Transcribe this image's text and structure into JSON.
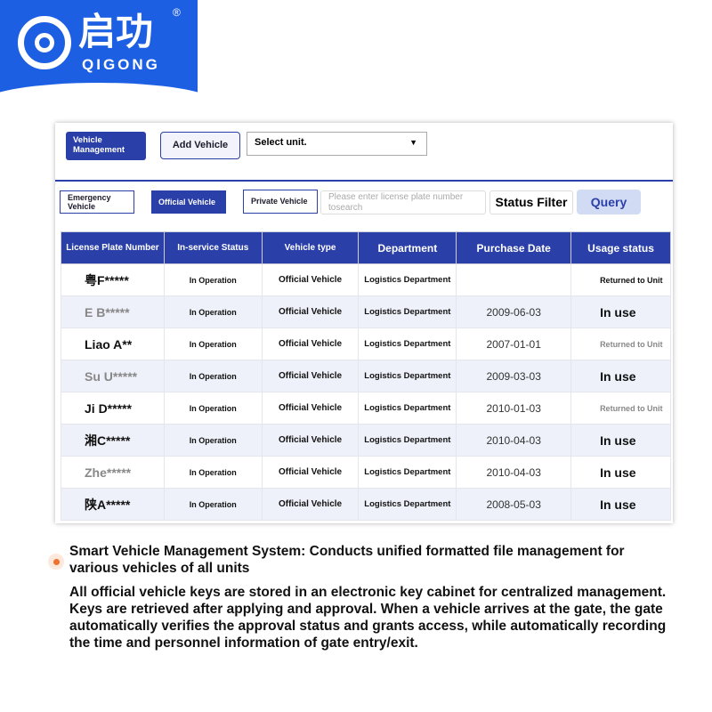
{
  "logo": {
    "chinese": "启功",
    "english": "QIGONG",
    "registered": "®"
  },
  "toolbar": {
    "vehicle_management": "Vehicle Management",
    "add_vehicle": "Add Vehicle",
    "unit_select": "Select unit.",
    "dropdown_arrow": "▼"
  },
  "filters": {
    "emergency": "Emergency Vehicle",
    "official": "Official Vehicle",
    "private": "Private Vehicle",
    "search_placeholder": "Please enter license plate number tosearch",
    "status_filter": "Status Filter",
    "query": "Query"
  },
  "colors": {
    "brand": "#1d5fe2",
    "header": "#2a3fa8",
    "accent": "#f07030"
  },
  "table": {
    "headers": [
      "License Plate Number",
      "In-service Status",
      "Vehicle type",
      "Department",
      "Purchase Date",
      "Usage status"
    ],
    "rows": [
      [
        "粤F*****",
        "In Operation",
        "Official Vehicle",
        "Logistics Department",
        "",
        "Returned to Unit"
      ],
      [
        "E B*****",
        "In Operation",
        "Official Vehicle",
        "Logistics Department",
        "2009-06-03",
        "In use"
      ],
      [
        "Liao A**",
        "In Operation",
        "Official Vehicle",
        "Logistics Department",
        "2007-01-01",
        "Returned to Unit"
      ],
      [
        "Su U*****",
        "In Operation",
        "Official Vehicle",
        "Logistics Department",
        "2009-03-03",
        "In use"
      ],
      [
        "Ji D*****",
        "In Operation",
        "Official Vehicle",
        "Logistics Department",
        "2010-01-03",
        "Returned to Unit"
      ],
      [
        "湘C*****",
        "In Operation",
        "Official Vehicle",
        "Logistics Department",
        "2010-04-03",
        "In use"
      ],
      [
        "Zhe*****",
        "In Operation",
        "Official Vehicle",
        "Logistics Department",
        "2010-04-03",
        "In use"
      ],
      [
        "陕A*****",
        "In Operation",
        "Official Vehicle",
        "Logistics Department",
        "2008-05-03",
        "In use"
      ]
    ]
  },
  "description": {
    "title": "Smart Vehicle Management System: Conducts unified formatted file management for various vehicles of all units",
    "body": "All official vehicle keys are stored in an electronic key cabinet for centralized management. Keys are retrieved after applying and approval. When a vehicle arrives at the gate, the gate automatically verifies the approval status and grants access, while automatically recording the time and personnel information of gate entry/exit."
  }
}
